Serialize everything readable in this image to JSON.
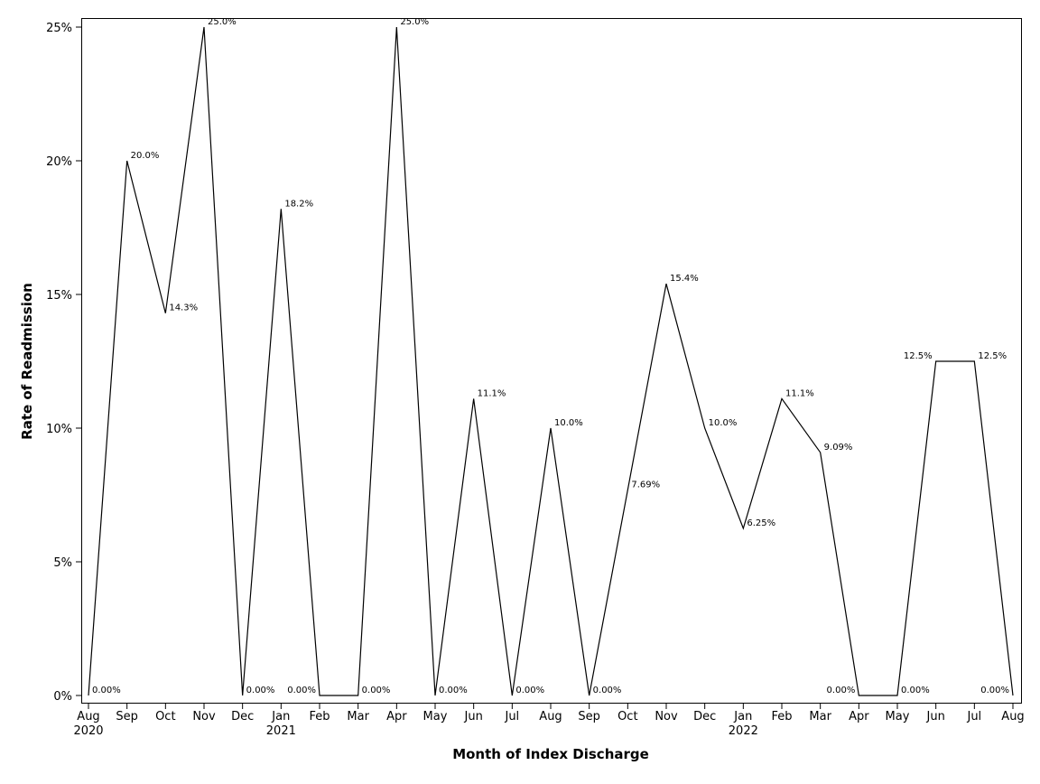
{
  "chart_data": {
    "type": "line",
    "title": "",
    "xlabel": "Month of Index Discharge",
    "ylabel": "Rate of Readmission",
    "ylim": [
      0,
      25
    ],
    "yticks": [
      {
        "value": 0,
        "label": "0%"
      },
      {
        "value": 5,
        "label": "5%"
      },
      {
        "value": 10,
        "label": "10%"
      },
      {
        "value": 15,
        "label": "15%"
      },
      {
        "value": 20,
        "label": "20%"
      },
      {
        "value": 25,
        "label": "25%"
      }
    ],
    "grid": false,
    "legend": "none",
    "line_color": "#000000",
    "x": [
      "2020-08",
      "2020-09",
      "2020-10",
      "2020-11",
      "2020-12",
      "2021-01",
      "2021-02",
      "2021-03",
      "2021-04",
      "2021-05",
      "2021-06",
      "2021-07",
      "2021-08",
      "2021-09",
      "2021-10",
      "2021-11",
      "2021-12",
      "2022-01",
      "2022-02",
      "2022-03",
      "2022-04",
      "2022-05",
      "2022-06",
      "2022-07",
      "2022-08"
    ],
    "month_labels": [
      "Aug",
      "Sep",
      "Oct",
      "Nov",
      "Dec",
      "Jan",
      "Feb",
      "Mar",
      "Apr",
      "May",
      "Jun",
      "Jul",
      "Aug",
      "Sep",
      "Oct",
      "Nov",
      "Dec",
      "Jan",
      "Feb",
      "Mar",
      "Apr",
      "May",
      "Jun",
      "Jul",
      "Aug"
    ],
    "year_labels": [
      {
        "index": 0,
        "label": "2020"
      },
      {
        "index": 5,
        "label": "2021"
      },
      {
        "index": 17,
        "label": "2022"
      }
    ],
    "values": [
      0,
      20.0,
      14.3,
      25.0,
      0,
      18.2,
      0,
      0,
      25.0,
      0,
      11.1,
      0,
      10.0,
      0,
      7.69,
      15.4,
      10.0,
      6.25,
      11.1,
      9.09,
      0,
      0,
      12.5,
      12.5,
      0
    ],
    "data_labels": [
      {
        "index": 0,
        "text": "0.00%",
        "pos": "right"
      },
      {
        "index": 1,
        "text": "20.0%",
        "pos": "right"
      },
      {
        "index": 2,
        "text": "14.3%",
        "pos": "right"
      },
      {
        "index": 3,
        "text": "25.0%",
        "pos": "right"
      },
      {
        "index": 4,
        "text": "0.00%",
        "pos": "right"
      },
      {
        "index": 5,
        "text": "18.2%",
        "pos": "right"
      },
      {
        "index": 6,
        "text": "0.00%",
        "pos": "left"
      },
      {
        "index": 7,
        "text": "0.00%",
        "pos": "right"
      },
      {
        "index": 8,
        "text": "25.0%",
        "pos": "right"
      },
      {
        "index": 9,
        "text": "0.00%",
        "pos": "right"
      },
      {
        "index": 10,
        "text": "11.1%",
        "pos": "right"
      },
      {
        "index": 11,
        "text": "0.00%",
        "pos": "right"
      },
      {
        "index": 12,
        "text": "10.0%",
        "pos": "right"
      },
      {
        "index": 13,
        "text": "0.00%",
        "pos": "right"
      },
      {
        "index": 14,
        "text": "7.69%",
        "pos": "right"
      },
      {
        "index": 15,
        "text": "15.4%",
        "pos": "right"
      },
      {
        "index": 16,
        "text": "10.0%",
        "pos": "right"
      },
      {
        "index": 17,
        "text": "6.25%",
        "pos": "right"
      },
      {
        "index": 18,
        "text": "11.1%",
        "pos": "right"
      },
      {
        "index": 19,
        "text": "9.09%",
        "pos": "right"
      },
      {
        "index": 20,
        "text": "0.00%",
        "pos": "left"
      },
      {
        "index": 21,
        "text": "0.00%",
        "pos": "right"
      },
      {
        "index": 22,
        "text": "12.5%",
        "pos": "left"
      },
      {
        "index": 23,
        "text": "12.5%",
        "pos": "right"
      },
      {
        "index": 24,
        "text": "0.00%",
        "pos": "left"
      }
    ]
  }
}
